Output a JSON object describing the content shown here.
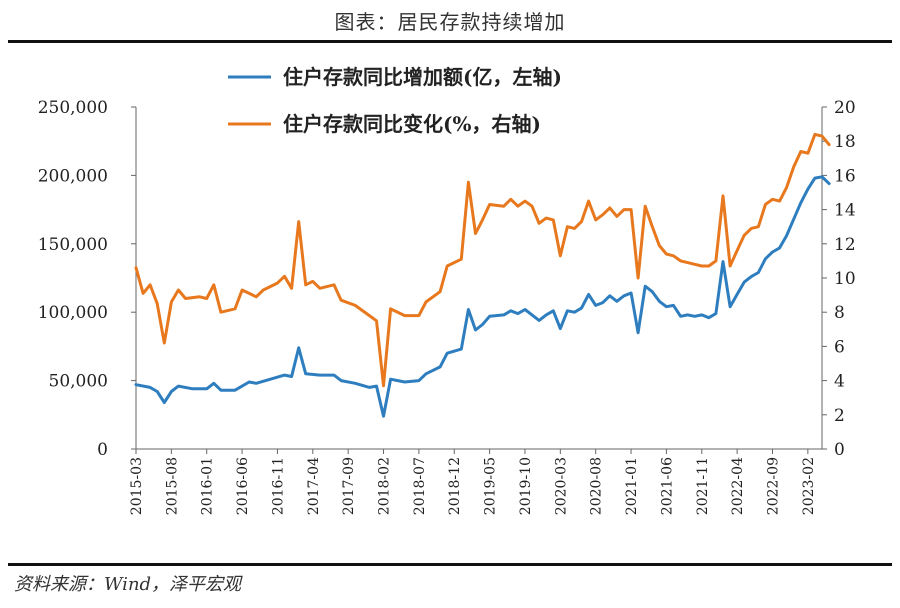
{
  "figure_title": "图表：居民存款持续增加",
  "source": "资料来源：Wind，泽平宏观",
  "colors": {
    "series_left": "#2E7EBF",
    "series_right": "#E8781E",
    "axis": "#666666",
    "rule": "#111111"
  },
  "chart_data": {
    "type": "line",
    "title": "",
    "legend_position": "top-center",
    "grid": false,
    "x_tick_labels": [
      "2015-03",
      "2015-08",
      "2016-01",
      "2016-06",
      "2016-11",
      "2017-04",
      "2017-09",
      "2018-02",
      "2018-07",
      "2018-12",
      "2019-05",
      "2019-10",
      "2020-03",
      "2020-08",
      "2021-01",
      "2021-06",
      "2021-11",
      "2022-04",
      "2022-09",
      "2023-02"
    ],
    "x_range": [
      "2015-03",
      "2023-04"
    ],
    "y_left": {
      "min": 0,
      "max": 250000,
      "ticks": [
        "0",
        "50,000",
        "100,000",
        "150,000",
        "200,000",
        "250,000"
      ]
    },
    "y_right": {
      "min": 0,
      "max": 20,
      "ticks": [
        "0",
        "2",
        "4",
        "6",
        "8",
        "10",
        "12",
        "14",
        "16",
        "18",
        "20"
      ]
    },
    "series": [
      {
        "name": "住户存款同比增加额(亿，左轴)",
        "axis": "left",
        "points": [
          [
            "2015-03",
            47000
          ],
          [
            "2015-05",
            45000
          ],
          [
            "2015-06",
            42000
          ],
          [
            "2015-07",
            34000
          ],
          [
            "2015-08",
            42000
          ],
          [
            "2015-09",
            46000
          ],
          [
            "2015-11",
            44000
          ],
          [
            "2016-01",
            44000
          ],
          [
            "2016-02",
            48000
          ],
          [
            "2016-03",
            43000
          ],
          [
            "2016-05",
            43000
          ],
          [
            "2016-07",
            49000
          ],
          [
            "2016-08",
            48000
          ],
          [
            "2016-10",
            51000
          ],
          [
            "2016-12",
            54000
          ],
          [
            "2017-01",
            53000
          ],
          [
            "2017-02",
            74000
          ],
          [
            "2017-03",
            55000
          ],
          [
            "2017-05",
            54000
          ],
          [
            "2017-07",
            54000
          ],
          [
            "2017-08",
            50000
          ],
          [
            "2017-10",
            48000
          ],
          [
            "2017-12",
            45000
          ],
          [
            "2018-01",
            46000
          ],
          [
            "2018-02",
            24000
          ],
          [
            "2018-03",
            51000
          ],
          [
            "2018-05",
            49000
          ],
          [
            "2018-07",
            50000
          ],
          [
            "2018-08",
            55000
          ],
          [
            "2018-10",
            60000
          ],
          [
            "2018-11",
            70000
          ],
          [
            "2019-01",
            73000
          ],
          [
            "2019-02",
            102000
          ],
          [
            "2019-03",
            87000
          ],
          [
            "2019-04",
            91000
          ],
          [
            "2019-05",
            97000
          ],
          [
            "2019-07",
            98000
          ],
          [
            "2019-08",
            101000
          ],
          [
            "2019-09",
            99000
          ],
          [
            "2019-10",
            102000
          ],
          [
            "2019-11",
            98000
          ],
          [
            "2019-12",
            94000
          ],
          [
            "2020-01",
            98000
          ],
          [
            "2020-02",
            101000
          ],
          [
            "2020-03",
            88000
          ],
          [
            "2020-04",
            101000
          ],
          [
            "2020-05",
            100000
          ],
          [
            "2020-06",
            103000
          ],
          [
            "2020-07",
            113000
          ],
          [
            "2020-08",
            105000
          ],
          [
            "2020-09",
            107000
          ],
          [
            "2020-10",
            112000
          ],
          [
            "2020-11",
            108000
          ],
          [
            "2020-12",
            112000
          ],
          [
            "2021-01",
            114000
          ],
          [
            "2021-02",
            85000
          ],
          [
            "2021-03",
            119000
          ],
          [
            "2021-04",
            115000
          ],
          [
            "2021-05",
            108000
          ],
          [
            "2021-06",
            104000
          ],
          [
            "2021-07",
            105000
          ],
          [
            "2021-08",
            97000
          ],
          [
            "2021-09",
            98000
          ],
          [
            "2021-10",
            97000
          ],
          [
            "2021-11",
            98000
          ],
          [
            "2021-12",
            96000
          ],
          [
            "2022-01",
            99000
          ],
          [
            "2022-02",
            137000
          ],
          [
            "2022-03",
            104000
          ],
          [
            "2022-04",
            113000
          ],
          [
            "2022-05",
            122000
          ],
          [
            "2022-06",
            126000
          ],
          [
            "2022-07",
            129000
          ],
          [
            "2022-08",
            139000
          ],
          [
            "2022-09",
            144000
          ],
          [
            "2022-10",
            147000
          ],
          [
            "2022-11",
            156000
          ],
          [
            "2022-12",
            168000
          ],
          [
            "2023-01",
            180000
          ],
          [
            "2023-02",
            190000
          ],
          [
            "2023-03",
            198000
          ],
          [
            "2023-04",
            199000
          ],
          [
            "2023-05",
            194000
          ]
        ]
      },
      {
        "name": "住户存款同比变化(%，右轴)",
        "axis": "right",
        "points": [
          [
            "2015-03",
            10.6
          ],
          [
            "2015-04",
            9.1
          ],
          [
            "2015-05",
            9.6
          ],
          [
            "2015-06",
            8.5
          ],
          [
            "2015-07",
            6.2
          ],
          [
            "2015-08",
            8.6
          ],
          [
            "2015-09",
            9.3
          ],
          [
            "2015-10",
            8.8
          ],
          [
            "2015-12",
            8.9
          ],
          [
            "2016-01",
            8.8
          ],
          [
            "2016-02",
            9.6
          ],
          [
            "2016-03",
            8.0
          ],
          [
            "2016-05",
            8.2
          ],
          [
            "2016-06",
            9.3
          ],
          [
            "2016-07",
            9.1
          ],
          [
            "2016-08",
            8.9
          ],
          [
            "2016-09",
            9.3
          ],
          [
            "2016-11",
            9.7
          ],
          [
            "2016-12",
            10.1
          ],
          [
            "2017-01",
            9.4
          ],
          [
            "2017-02",
            13.3
          ],
          [
            "2017-03",
            9.6
          ],
          [
            "2017-04",
            9.8
          ],
          [
            "2017-05",
            9.4
          ],
          [
            "2017-07",
            9.6
          ],
          [
            "2017-08",
            8.7
          ],
          [
            "2017-10",
            8.4
          ],
          [
            "2017-12",
            7.8
          ],
          [
            "2018-01",
            7.5
          ],
          [
            "2018-02",
            3.7
          ],
          [
            "2018-03",
            8.2
          ],
          [
            "2018-05",
            7.8
          ],
          [
            "2018-07",
            7.8
          ],
          [
            "2018-08",
            8.6
          ],
          [
            "2018-10",
            9.2
          ],
          [
            "2018-11",
            10.7
          ],
          [
            "2019-01",
            11.1
          ],
          [
            "2019-02",
            15.6
          ],
          [
            "2019-03",
            12.6
          ],
          [
            "2019-04",
            13.4
          ],
          [
            "2019-05",
            14.3
          ],
          [
            "2019-07",
            14.2
          ],
          [
            "2019-08",
            14.6
          ],
          [
            "2019-09",
            14.2
          ],
          [
            "2019-10",
            14.5
          ],
          [
            "2019-11",
            14.2
          ],
          [
            "2019-12",
            13.2
          ],
          [
            "2020-01",
            13.5
          ],
          [
            "2020-02",
            13.4
          ],
          [
            "2020-03",
            11.3
          ],
          [
            "2020-04",
            13.0
          ],
          [
            "2020-05",
            12.9
          ],
          [
            "2020-06",
            13.3
          ],
          [
            "2020-07",
            14.5
          ],
          [
            "2020-08",
            13.4
          ],
          [
            "2020-09",
            13.7
          ],
          [
            "2020-10",
            14.1
          ],
          [
            "2020-11",
            13.6
          ],
          [
            "2020-12",
            14.0
          ],
          [
            "2021-01",
            14.0
          ],
          [
            "2021-02",
            10.0
          ],
          [
            "2021-03",
            14.2
          ],
          [
            "2021-04",
            13.0
          ],
          [
            "2021-05",
            11.9
          ],
          [
            "2021-06",
            11.4
          ],
          [
            "2021-07",
            11.3
          ],
          [
            "2021-08",
            11.0
          ],
          [
            "2021-09",
            10.9
          ],
          [
            "2021-10",
            10.8
          ],
          [
            "2021-11",
            10.7
          ],
          [
            "2021-12",
            10.7
          ],
          [
            "2022-01",
            11.0
          ],
          [
            "2022-02",
            14.8
          ],
          [
            "2022-03",
            10.7
          ],
          [
            "2022-04",
            11.6
          ],
          [
            "2022-05",
            12.5
          ],
          [
            "2022-06",
            12.9
          ],
          [
            "2022-07",
            13.0
          ],
          [
            "2022-08",
            14.3
          ],
          [
            "2022-09",
            14.6
          ],
          [
            "2022-10",
            14.5
          ],
          [
            "2022-11",
            15.3
          ],
          [
            "2022-12",
            16.5
          ],
          [
            "2023-01",
            17.4
          ],
          [
            "2023-02",
            17.3
          ],
          [
            "2023-03",
            18.4
          ],
          [
            "2023-04",
            18.3
          ],
          [
            "2023-05",
            17.8
          ]
        ]
      }
    ]
  }
}
